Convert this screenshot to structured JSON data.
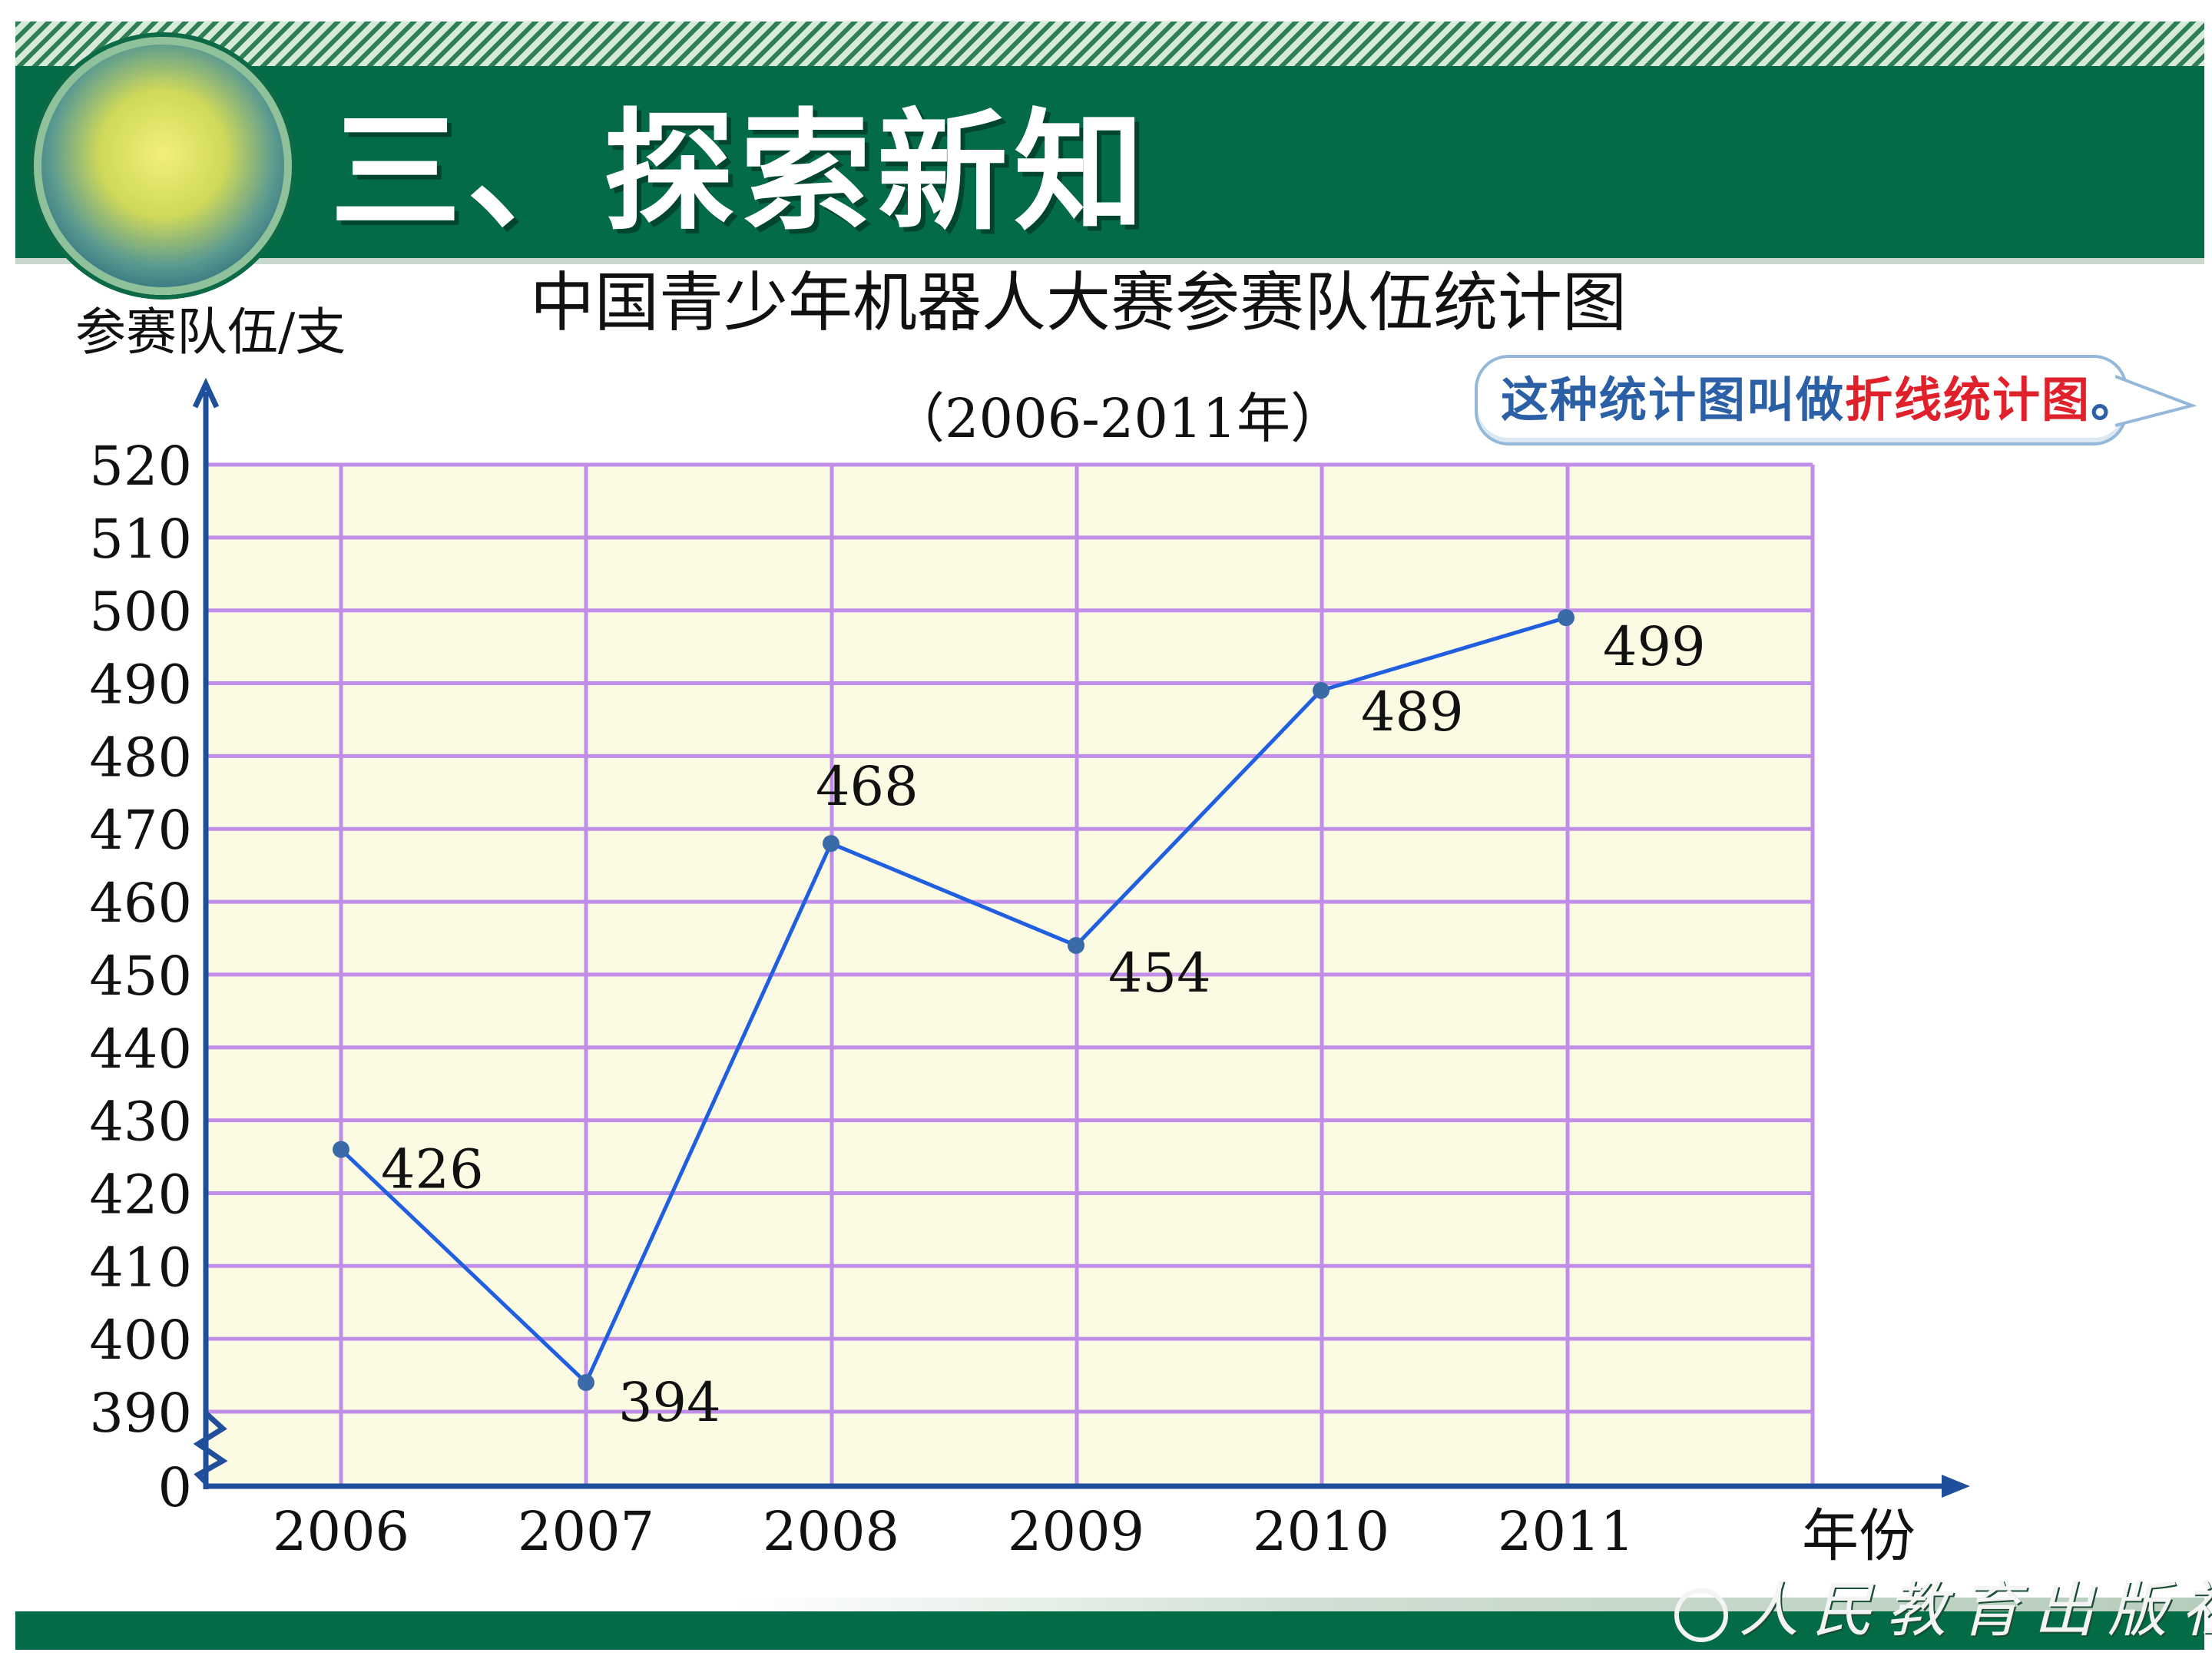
{
  "header": {
    "title": "三、探索新知"
  },
  "callout": {
    "prefix": "这种统计图叫做",
    "highlight": "折线统计图",
    "suffix": "。"
  },
  "footer": {
    "publisher": "人民教育出版社"
  },
  "chart_data": {
    "type": "line",
    "title": "中国青少年机器人大赛参赛队伍统计图",
    "subtitle": "（2006-2011年）",
    "ylabel": "参赛队伍/支",
    "xlabel": "年份",
    "categories": [
      "2006",
      "2007",
      "2008",
      "2009",
      "2010",
      "2011"
    ],
    "series": [
      {
        "values": [
          426,
          394,
          468,
          454,
          489,
          499
        ]
      }
    ],
    "data_labels": [
      "426",
      "394",
      "468",
      "454",
      "489",
      "499"
    ],
    "y_ticks": [
      "520",
      "510",
      "500",
      "490",
      "480",
      "470",
      "460",
      "450",
      "440",
      "430",
      "420",
      "410",
      "400",
      "390",
      "0"
    ],
    "ylim": [
      390,
      520
    ],
    "y_axis_break": true,
    "grid": true,
    "colors": {
      "line": "#1f5fe0",
      "points": "#3b6aa8",
      "plot_background": "#fbfae2",
      "grid": "#c08ee8",
      "axis": "#1f4f9a"
    }
  }
}
